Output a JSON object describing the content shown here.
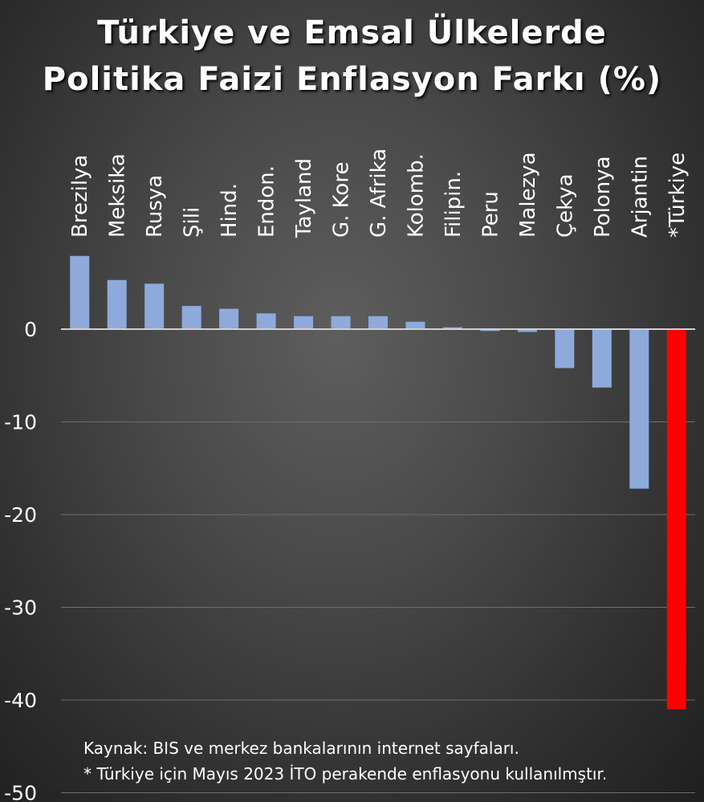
{
  "title": {
    "line1": "Türkiye ve Emsal Ülkelerde",
    "line2": "Politika Faizi Enflasyon Farkı (%)"
  },
  "notes": {
    "source": "Kaynak: BIS ve merkez bankalarının internet sayfaları.",
    "footnote": "* Türkiye için Mayıs 2023 İTO perakende enflasyonu kullanılmştır."
  },
  "colors": {
    "bar": "#8eaadb",
    "highlight": "#ff0000",
    "grid": "#6e6e6e",
    "zero_line": "#d0d0d0",
    "text": "#ffffff"
  },
  "chart_data": {
    "type": "bar",
    "categories": [
      "Brezilya",
      "Meksika",
      "Rusya",
      "Şili",
      "Hind.",
      "Endon.",
      "Tayland",
      "G. Kore",
      "G. Afrika",
      "Kolomb.",
      "Filipin.",
      "Peru",
      "Malezya",
      "Çekya",
      "Polonya",
      "Arjantin",
      "*Türkiye"
    ],
    "values": [
      7.9,
      5.3,
      4.9,
      2.5,
      2.2,
      1.7,
      1.4,
      1.4,
      1.4,
      0.8,
      0.2,
      -0.2,
      -0.3,
      -4.2,
      -6.3,
      -17.2,
      -41.0
    ],
    "highlight_index": 16,
    "y_ticks": [
      0,
      -10,
      -20,
      -30,
      -40,
      -50
    ],
    "ylim": [
      -50,
      10
    ],
    "grid": true,
    "xlabel": "",
    "ylabel": ""
  }
}
